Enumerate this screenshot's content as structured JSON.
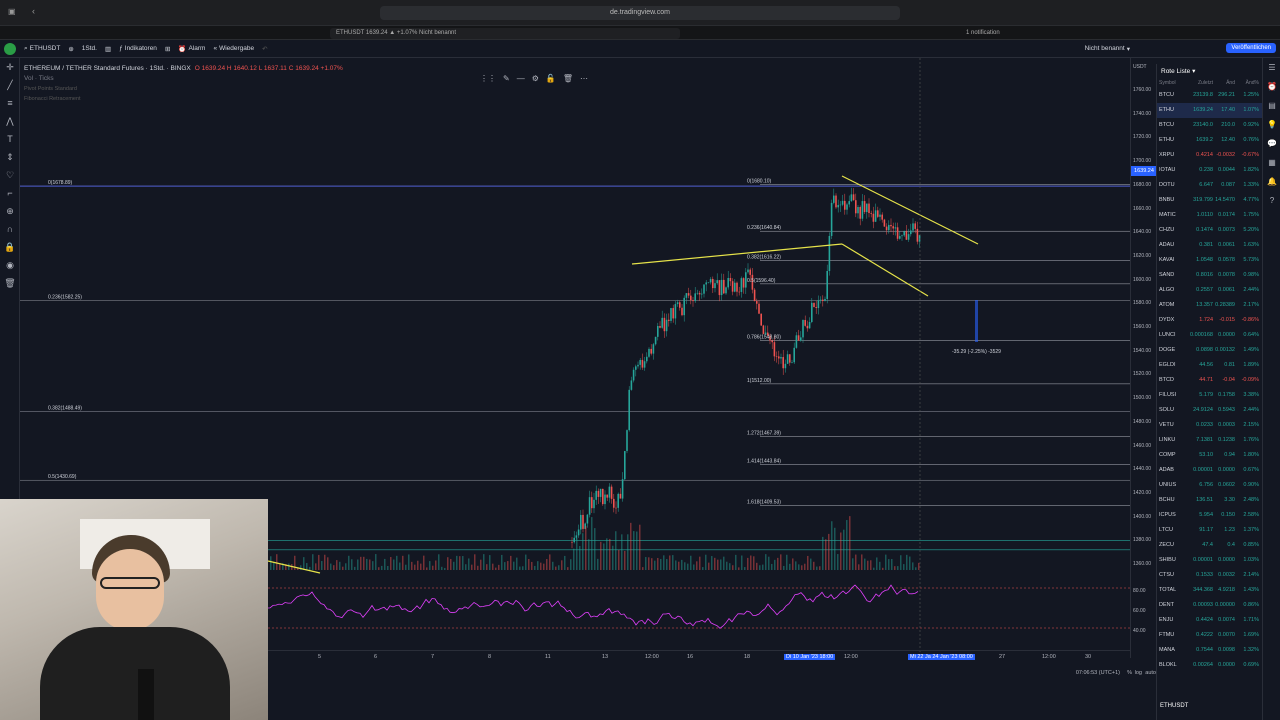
{
  "browser": {
    "url": "de.tradingview.com",
    "tab_main": "ETHUSDT 1639.24 ▲ +1.07% Nicht benannt",
    "tab_notif": "1 notification"
  },
  "toolbar": {
    "symbol": "ETHUSDT",
    "interval": "1Std.",
    "indicators": "Indikatoren",
    "alarm": "Alarm",
    "replay": "Wiedergabe",
    "unnamed": "Nicht benannt",
    "publish": "Veröffentlichen"
  },
  "legend": {
    "title": "ETHEREUM / TETHER Standard Futures · 1Std. · BINGX",
    "ohlc": "O 1639.24 H 1640.12 L 1637.11 C 1639.24 +1.07%",
    "vol": "Vol · Ticks",
    "line3": "Pivot Points Standard",
    "line4": "Fibonacci Retracement"
  },
  "price_axis": {
    "currency": "USDT",
    "ticks": [
      "1760.00",
      "1740.00",
      "1720.00",
      "1700.00",
      "1680.00",
      "1660.00",
      "1640.00",
      "1620.00",
      "1600.00",
      "1580.00",
      "1560.00",
      "1540.00",
      "1520.00",
      "1500.00",
      "1480.00",
      "1460.00",
      "1440.00",
      "1420.00",
      "1400.00",
      "1380.00",
      "1360.00"
    ],
    "rsi_ticks": [
      "80.00",
      "60.00",
      "40.00"
    ],
    "current": "1639.24"
  },
  "time_axis": {
    "ticks": [
      "5",
      "6",
      "7",
      "8",
      "11",
      "13",
      "12:00",
      "16",
      "18",
      "Di 10 Jan '23 18:00",
      "12:00",
      "Mi 22 Ja 24 Jan '23 08:00",
      "27",
      "12:00",
      "30"
    ],
    "clock": "07:06:53 (UTC+1)"
  },
  "fib_labels": {
    "left": [
      "0(1678.89)",
      "0.236(1582.25)",
      "0.382(1488.49)",
      "0.5(1430.69)"
    ],
    "right": [
      "0(1680.10)",
      "0.236(1640.84)",
      "0.382(1616.22)",
      "0.5(1596.40)",
      "0.786(1548.80)",
      "1(1512.00)",
      "1.272(1467.39)",
      "1.414(1443.84)",
      "1.618(1409.53)"
    ]
  },
  "measure_label": "-35.29 (-2.25%) -3529",
  "watchlist": {
    "title": "Rote Liste",
    "columns": [
      "Symbol",
      "Zuletzt",
      "Änd",
      "Änd%"
    ],
    "rows": [
      {
        "sym": "BTCU",
        "last": "23139.8",
        "chg": "296.21",
        "pct": "1.25%",
        "up": true
      },
      {
        "sym": "ETHU",
        "last": "1639.24",
        "chg": "17.40",
        "pct": "1.07%",
        "up": true
      },
      {
        "sym": "BTCU",
        "last": "23140.0",
        "chg": "210.0",
        "pct": "0.92%",
        "up": true
      },
      {
        "sym": "ETHU",
        "last": "1639.2",
        "chg": "12.40",
        "pct": "0.76%",
        "up": true
      },
      {
        "sym": "XRPU",
        "last": "0.4214",
        "chg": "-0.0032",
        "pct": "-0.67%",
        "up": false
      },
      {
        "sym": "IOTAU",
        "last": "0.238",
        "chg": "0.0044",
        "pct": "1.82%",
        "up": true
      },
      {
        "sym": "DOTU",
        "last": "6.647",
        "chg": "0.087",
        "pct": "1.33%",
        "up": true
      },
      {
        "sym": "BNBU",
        "last": "319.799",
        "chg": "14.5470",
        "pct": "4.77%",
        "up": true
      },
      {
        "sym": "MATIC",
        "last": "1.0110",
        "chg": "0.0174",
        "pct": "1.75%",
        "up": true
      },
      {
        "sym": "CHZU",
        "last": "0.1474",
        "chg": "0.0073",
        "pct": "5.20%",
        "up": true
      },
      {
        "sym": "ADAU",
        "last": "0.381",
        "chg": "0.0061",
        "pct": "1.63%",
        "up": true
      },
      {
        "sym": "KAVAI",
        "last": "1.0548",
        "chg": "0.0578",
        "pct": "5.73%",
        "up": true
      },
      {
        "sym": "SAND",
        "last": "0.8016",
        "chg": "0.0078",
        "pct": "0.98%",
        "up": true
      },
      {
        "sym": "ALGO",
        "last": "0.2557",
        "chg": "0.0061",
        "pct": "2.44%",
        "up": true
      },
      {
        "sym": "ATOM",
        "last": "13.357",
        "chg": "0.28389",
        "pct": "2.17%",
        "up": true
      },
      {
        "sym": "DYDX",
        "last": "1.724",
        "chg": "-0.015",
        "pct": "-0.86%",
        "up": false
      },
      {
        "sym": "LUNCI",
        "last": "0.000168",
        "chg": "0.0000",
        "pct": "0.64%",
        "up": true
      },
      {
        "sym": "DOGE",
        "last": "0.0898",
        "chg": "0.00132",
        "pct": "1.49%",
        "up": true
      },
      {
        "sym": "EGLDI",
        "last": "44.56",
        "chg": "0.81",
        "pct": "1.89%",
        "up": true
      },
      {
        "sym": "BTCD",
        "last": "44.71",
        "chg": "-0.04",
        "pct": "-0.09%",
        "up": false
      },
      {
        "sym": "FILUSI",
        "last": "5.179",
        "chg": "0.1758",
        "pct": "3.38%",
        "up": true
      },
      {
        "sym": "SOLU",
        "last": "24.9124",
        "chg": "0.5943",
        "pct": "2.44%",
        "up": true
      },
      {
        "sym": "VETU",
        "last": "0.0233",
        "chg": "0.0003",
        "pct": "2.15%",
        "up": true
      },
      {
        "sym": "LINKU",
        "last": "7.1381",
        "chg": "0.1238",
        "pct": "1.76%",
        "up": true
      },
      {
        "sym": "COMP",
        "last": "53.10",
        "chg": "0.94",
        "pct": "1.80%",
        "up": true
      },
      {
        "sym": "ADAB",
        "last": "0.00001",
        "chg": "0.0000",
        "pct": "0.67%",
        "up": true
      },
      {
        "sym": "UNIUS",
        "last": "6.756",
        "chg": "0.0602",
        "pct": "0.90%",
        "up": true
      },
      {
        "sym": "BCHU",
        "last": "136.51",
        "chg": "3.30",
        "pct": "2.48%",
        "up": true
      },
      {
        "sym": "ICPUS",
        "last": "5.954",
        "chg": "0.150",
        "pct": "2.58%",
        "up": true
      },
      {
        "sym": "LTCU",
        "last": "91.17",
        "chg": "1.23",
        "pct": "1.37%",
        "up": true
      },
      {
        "sym": "ZECU",
        "last": "47.4",
        "chg": "0.4",
        "pct": "0.85%",
        "up": true
      },
      {
        "sym": "SHIBU",
        "last": "0.00001",
        "chg": "0.0000",
        "pct": "1.03%",
        "up": true
      },
      {
        "sym": "CTSU",
        "last": "0.1533",
        "chg": "0.0032",
        "pct": "2.14%",
        "up": true
      },
      {
        "sym": "TOTAL",
        "last": "344.368",
        "chg": "4.9218",
        "pct": "1.43%",
        "up": true
      },
      {
        "sym": "DENT",
        "last": "0.00093",
        "chg": "0.00000",
        "pct": "0.86%",
        "up": true
      },
      {
        "sym": "ENJU",
        "last": "0.4424",
        "chg": "0.0074",
        "pct": "1.71%",
        "up": true
      },
      {
        "sym": "FTMU",
        "last": "0.4222",
        "chg": "0.0070",
        "pct": "1.69%",
        "up": true
      },
      {
        "sym": "MANA",
        "last": "0.7544",
        "chg": "0.0098",
        "pct": "1.32%",
        "up": true
      },
      {
        "sym": "BLOKL",
        "last": "0.00264",
        "chg": "0.0000",
        "pct": "0.69%",
        "up": true
      }
    ]
  },
  "footer_symbol": "ETHUSDT",
  "colors": {
    "bg": "#131722",
    "up": "#26a69a",
    "down": "#ef5350",
    "accent": "#2962ff",
    "trend": "#e6e34a"
  }
}
